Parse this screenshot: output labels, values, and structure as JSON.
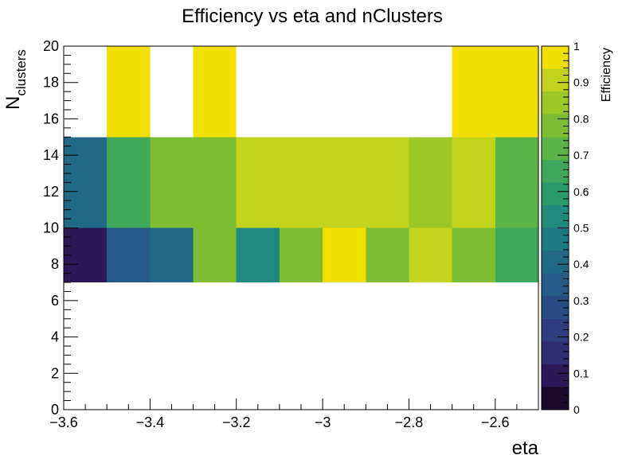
{
  "chart_data": {
    "type": "heatmap",
    "title": "Efficiency vs eta and nClusters",
    "xlabel": "eta",
    "ylabel_main": "N",
    "ylabel_sub": "clusters",
    "zlabel": "Efficiency",
    "xlim": [
      -3.6,
      -2.5
    ],
    "ylim": [
      0,
      20
    ],
    "zlim": [
      0,
      1
    ],
    "x_major_ticks": [
      -3.6,
      -3.4,
      -3.2,
      -3,
      -2.8,
      -2.6
    ],
    "x_tick_labels": [
      "−3.6",
      "−3.4",
      "−3.2",
      "−3",
      "−2.8",
      "−2.6"
    ],
    "y_major_ticks": [
      0,
      2,
      4,
      6,
      8,
      10,
      12,
      14,
      16,
      18,
      20
    ],
    "y_tick_labels": [
      "0",
      "2",
      "4",
      "6",
      "8",
      "10",
      "12",
      "14",
      "16",
      "18",
      "20"
    ],
    "z_major_ticks": [
      0,
      0.1,
      0.2,
      0.3,
      0.4,
      0.5,
      0.6,
      0.7,
      0.8,
      0.9,
      1
    ],
    "z_tick_labels": [
      "0",
      "0.1",
      "0.2",
      "0.3",
      "0.4",
      "0.5",
      "0.6",
      "0.7",
      "0.8",
      "0.9",
      "1"
    ],
    "x_bin_edges": [
      -3.6,
      -3.5,
      -3.4,
      -3.3,
      -3.2,
      -3.1,
      -3.0,
      -2.9,
      -2.8,
      -2.7,
      -2.6,
      -2.5
    ],
    "y_bin_edges": [
      7,
      10,
      15,
      20
    ],
    "z_values": [
      [
        0.12,
        0.33,
        0.38,
        0.8,
        0.55,
        0.76,
        1.0,
        0.76,
        0.89,
        0.76,
        0.68
      ],
      [
        0.4,
        0.64,
        0.76,
        0.76,
        0.89,
        0.89,
        0.89,
        0.89,
        0.82,
        0.89,
        0.71
      ],
      [
        null,
        1.0,
        null,
        1.0,
        null,
        null,
        null,
        null,
        null,
        1.0,
        1.0
      ]
    ],
    "palette": [
      "#1a0a2e",
      "#2c1a58",
      "#2f2c72",
      "#2e3c7d",
      "#2b4b85",
      "#265a87",
      "#216a87",
      "#1d7a85",
      "#1f8a7d",
      "#2a9a6d",
      "#3fa85b",
      "#5bb346",
      "#7cbd32",
      "#9dc825",
      "#c2d31d",
      "#f1df00"
    ],
    "grid": false,
    "legend": "right"
  }
}
